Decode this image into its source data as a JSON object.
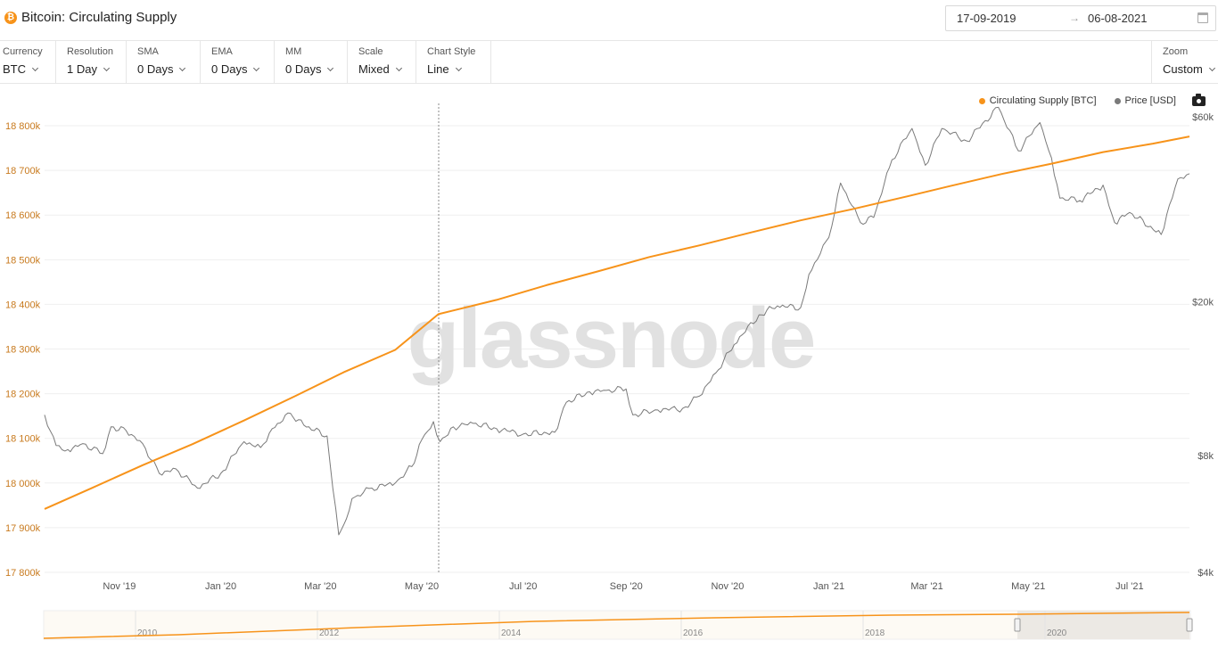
{
  "header": {
    "coin_symbol": "₿",
    "title": "Bitcoin: Circulating Supply",
    "date_start": "17-09-2019",
    "date_arrow": "→",
    "date_end": "06-08-2021"
  },
  "toolbar": {
    "items": [
      {
        "label": "Currency",
        "value": "BTC"
      },
      {
        "label": "Resolution",
        "value": "1 Day"
      },
      {
        "label": "SMA",
        "value": "0 Days"
      },
      {
        "label": "EMA",
        "value": "0 Days"
      },
      {
        "label": "MM",
        "value": "0 Days"
      },
      {
        "label": "Scale",
        "value": "Mixed"
      },
      {
        "label": "Chart Style",
        "value": "Line"
      }
    ],
    "zoom": {
      "label": "Zoom",
      "value": "Custom"
    }
  },
  "watermark": "glassnode",
  "colors": {
    "supply": "#f7931a",
    "price": "#7a7a7a",
    "axis_left": "#c87a1e"
  },
  "chart_data": {
    "type": "line",
    "title": "Bitcoin: Circulating Supply",
    "x_ticks": [
      "Nov '19",
      "Jan '20",
      "Mar '20",
      "May '20",
      "Jul '20",
      "Sep '20",
      "Nov '20",
      "Jan '21",
      "Mar '21",
      "May '21",
      "Jul '21"
    ],
    "y_left": {
      "ticks": [
        "17 800k",
        "17 900k",
        "18 000k",
        "18 100k",
        "18 200k",
        "18 300k",
        "18 400k",
        "18 500k",
        "18 600k",
        "18 700k",
        "18 800k"
      ],
      "range": [
        17800,
        18850
      ],
      "unit": "k BTC"
    },
    "y_right": {
      "ticks": [
        "$4k",
        "$8k",
        "$20k",
        "$60k"
      ],
      "scale": "log",
      "range": [
        4000,
        65000
      ]
    },
    "legend_position": "top-right",
    "grid": true,
    "series": [
      {
        "name": "Circulating Supply [BTC]",
        "axis": "left",
        "points": [
          [
            "2019-09-17",
            17942
          ],
          [
            "2019-10-15",
            17988
          ],
          [
            "2019-11-15",
            18040
          ],
          [
            "2019-12-15",
            18087
          ],
          [
            "2020-01-15",
            18140
          ],
          [
            "2020-02-15",
            18195
          ],
          [
            "2020-03-15",
            18248
          ],
          [
            "2020-04-15",
            18298
          ],
          [
            "2020-05-11",
            18378
          ],
          [
            "2020-06-15",
            18410
          ],
          [
            "2020-07-15",
            18443
          ],
          [
            "2020-08-15",
            18474
          ],
          [
            "2020-09-15",
            18506
          ],
          [
            "2020-10-15",
            18532
          ],
          [
            "2020-11-15",
            18561
          ],
          [
            "2020-12-15",
            18588
          ],
          [
            "2021-01-15",
            18613
          ],
          [
            "2021-02-15",
            18640
          ],
          [
            "2021-03-15",
            18665
          ],
          [
            "2021-04-15",
            18692
          ],
          [
            "2021-05-15",
            18715
          ],
          [
            "2021-06-15",
            18741
          ],
          [
            "2021-07-15",
            18760
          ],
          [
            "2021-08-06",
            18776
          ]
        ]
      },
      {
        "name": "Price [USD]",
        "axis": "right",
        "points": [
          [
            "2019-09-17",
            10200
          ],
          [
            "2019-09-24",
            8500
          ],
          [
            "2019-10-01",
            8300
          ],
          [
            "2019-10-10",
            8600
          ],
          [
            "2019-10-22",
            8100
          ],
          [
            "2019-10-27",
            9500
          ],
          [
            "2019-11-05",
            9300
          ],
          [
            "2019-11-15",
            8600
          ],
          [
            "2019-11-25",
            7200
          ],
          [
            "2019-12-05",
            7400
          ],
          [
            "2019-12-18",
            6600
          ],
          [
            "2020-01-01",
            7200
          ],
          [
            "2020-01-15",
            8700
          ],
          [
            "2020-01-25",
            8400
          ],
          [
            "2020-02-01",
            9400
          ],
          [
            "2020-02-12",
            10300
          ],
          [
            "2020-02-20",
            9600
          ],
          [
            "2020-03-05",
            9000
          ],
          [
            "2020-03-12",
            5000
          ],
          [
            "2020-03-15",
            5300
          ],
          [
            "2020-03-20",
            6200
          ],
          [
            "2020-04-01",
            6600
          ],
          [
            "2020-04-15",
            6800
          ],
          [
            "2020-04-25",
            7500
          ],
          [
            "2020-05-01",
            8800
          ],
          [
            "2020-05-08",
            9800
          ],
          [
            "2020-05-12",
            8700
          ],
          [
            "2020-05-20",
            9500
          ],
          [
            "2020-06-01",
            9700
          ],
          [
            "2020-06-15",
            9400
          ],
          [
            "2020-07-01",
            9100
          ],
          [
            "2020-07-20",
            9200
          ],
          [
            "2020-07-27",
            11000
          ],
          [
            "2020-08-10",
            11700
          ],
          [
            "2020-08-20",
            11800
          ],
          [
            "2020-09-01",
            11900
          ],
          [
            "2020-09-05",
            10200
          ],
          [
            "2020-09-20",
            10500
          ],
          [
            "2020-10-05",
            10600
          ],
          [
            "2020-10-15",
            11400
          ],
          [
            "2020-10-25",
            13100
          ],
          [
            "2020-11-05",
            15500
          ],
          [
            "2020-11-20",
            18500
          ],
          [
            "2020-12-01",
            19500
          ],
          [
            "2020-12-15",
            19300
          ],
          [
            "2020-12-20",
            23500
          ],
          [
            "2021-01-01",
            29300
          ],
          [
            "2021-01-08",
            40500
          ],
          [
            "2021-01-20",
            32000
          ],
          [
            "2021-01-28",
            33000
          ],
          [
            "2021-02-08",
            46500
          ],
          [
            "2021-02-20",
            56000
          ],
          [
            "2021-02-28",
            45000
          ],
          [
            "2021-03-10",
            56000
          ],
          [
            "2021-03-25",
            52000
          ],
          [
            "2021-04-13",
            63500
          ],
          [
            "2021-04-25",
            49000
          ],
          [
            "2021-05-08",
            58000
          ],
          [
            "2021-05-15",
            47000
          ],
          [
            "2021-05-20",
            37000
          ],
          [
            "2021-06-01",
            36500
          ],
          [
            "2021-06-15",
            40000
          ],
          [
            "2021-06-22",
            32000
          ],
          [
            "2021-07-01",
            34000
          ],
          [
            "2021-07-20",
            29800
          ],
          [
            "2021-07-30",
            41500
          ],
          [
            "2021-08-06",
            42800
          ]
        ]
      }
    ],
    "navigator": {
      "labels": [
        "2010",
        "2012",
        "2014",
        "2016",
        "2018",
        "2020"
      ]
    }
  }
}
